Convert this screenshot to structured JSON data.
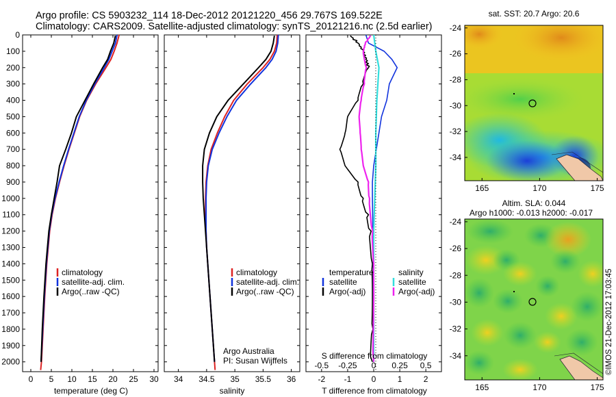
{
  "header": {
    "line1": "Argo profile: CS 5903232_114 18-Dec-2012 20121220_456 29.767S 169.522E",
    "line2": "Climatology: CARS2009. Satellite-adjusted climatology: synTS_20121216.nc (2.5d earlier)"
  },
  "colors": {
    "climatology": "#dd2222",
    "satellite": "#1133dd",
    "argo": "#000000",
    "salinity_satellite": "#33dddd",
    "salinity_argo": "#ee22ee"
  },
  "panels": {
    "temperature": {
      "xlabel": "temperature (deg C)",
      "legend": [
        "climatology",
        "satellite-adj. clim.",
        "Argo(..raw -QC)"
      ]
    },
    "salinity": {
      "xlabel": "salinity",
      "legend": [
        "climatology",
        "satellite-adj. clim.",
        "Argo(..raw -QC)"
      ],
      "note_line1": "Argo Australia",
      "note_line2": "PI: Susan Wijffels"
    },
    "difference": {
      "xlabel_T": "T difference from climatology",
      "xlabel_S": "S difference from climatology",
      "legend_head_T": "temperature",
      "legend_head_S": "salinity",
      "legend_T": [
        "satellite",
        "Argo(-adj)"
      ],
      "legend_S": [
        "satellite",
        "Argo(-adj)"
      ]
    },
    "sst_map": {
      "title": "sat. SST: 20.7  Argo: 20.6"
    },
    "sla_map": {
      "title1": "Altim. SLA: 0.044",
      "title2": "Argo h1000: -0.013  h2000: -0.017"
    },
    "side_label": "©IMOS 21-Dec-2012 17:03:45"
  },
  "chart_data": [
    {
      "type": "line",
      "panel": "temperature",
      "xlabel": "temperature (deg C)",
      "xlim": [
        -2,
        31
      ],
      "ylim": [
        2060,
        0
      ],
      "x_ticks": [
        0,
        5,
        10,
        15,
        20,
        25,
        30
      ],
      "y_ticks": [
        0,
        100,
        200,
        300,
        400,
        500,
        600,
        700,
        800,
        900,
        1000,
        1100,
        1200,
        1300,
        1400,
        1500,
        1600,
        1700,
        1800,
        1900,
        2000
      ],
      "series": [
        {
          "name": "climatology",
          "depth": [
            0,
            50,
            100,
            150,
            200,
            300,
            400,
            500,
            600,
            700,
            800,
            900,
            1000,
            1100,
            1200,
            1400,
            1600,
            1800,
            2000,
            2050
          ],
          "values": [
            21.5,
            21.0,
            20.3,
            19.5,
            18.3,
            15.8,
            13.6,
            11.9,
            10.6,
            9.3,
            8.1,
            7.0,
            6.0,
            5.2,
            4.6,
            3.9,
            3.4,
            3.0,
            2.6,
            2.4
          ]
        },
        {
          "name": "satellite-adj. clim.",
          "depth": [
            0,
            50,
            100,
            150,
            200,
            300,
            400,
            500,
            600,
            700,
            800,
            900,
            1000,
            1100,
            1200,
            1400,
            1600,
            1800,
            2000
          ],
          "values": [
            21.0,
            20.6,
            19.8,
            19.0,
            17.9,
            15.6,
            13.5,
            11.8,
            10.5,
            9.2,
            8.0,
            6.9,
            5.9,
            5.1,
            4.5,
            3.8,
            3.3,
            2.9,
            2.5
          ]
        },
        {
          "name": "Argo(..raw -QC)",
          "depth": [
            5,
            50,
            100,
            150,
            200,
            300,
            400,
            500,
            600,
            700,
            800,
            900,
            1000,
            1100,
            1200,
            1400,
            1600,
            1800,
            2000
          ],
          "values": [
            20.6,
            20.2,
            19.4,
            18.7,
            17.5,
            15.3,
            13.2,
            11.1,
            9.9,
            8.5,
            7.0,
            6.4,
            5.7,
            5.0,
            4.4,
            3.7,
            3.2,
            2.8,
            2.5
          ]
        }
      ]
    },
    {
      "type": "line",
      "panel": "salinity",
      "xlabel": "salinity",
      "xlim": [
        33.75,
        36.15
      ],
      "ylim": [
        2060,
        0
      ],
      "x_ticks": [
        34,
        34.5,
        35,
        35.5,
        36
      ],
      "series": [
        {
          "name": "climatology",
          "depth": [
            0,
            50,
            100,
            150,
            200,
            300,
            400,
            500,
            600,
            700,
            800,
            900,
            1000,
            1100,
            1200,
            1300,
            1400,
            1600,
            1800,
            2000,
            2050
          ],
          "values": [
            35.75,
            35.74,
            35.7,
            35.62,
            35.5,
            35.22,
            34.98,
            34.82,
            34.69,
            34.58,
            34.52,
            34.49,
            34.48,
            34.48,
            34.49,
            34.5,
            34.52,
            34.56,
            34.6,
            34.64,
            34.65
          ]
        },
        {
          "name": "satellite-adj. clim.",
          "depth": [
            0,
            50,
            100,
            150,
            200,
            300,
            400,
            500,
            600,
            700,
            800,
            900,
            1000,
            1100,
            1200,
            1300,
            1400,
            1600,
            1800,
            2000
          ],
          "values": [
            35.77,
            35.76,
            35.73,
            35.66,
            35.55,
            35.28,
            35.03,
            34.86,
            34.72,
            34.6,
            34.53,
            34.5,
            34.49,
            34.49,
            34.49,
            34.5,
            34.52,
            34.56,
            34.6,
            34.64
          ]
        },
        {
          "name": "Argo(..raw -QC)",
          "depth": [
            5,
            50,
            100,
            150,
            200,
            300,
            400,
            500,
            600,
            700,
            800,
            900,
            1000,
            1100,
            1200,
            1300,
            1400,
            1600,
            1800,
            2000
          ],
          "values": [
            35.7,
            35.68,
            35.64,
            35.55,
            35.42,
            35.15,
            34.88,
            34.68,
            34.55,
            34.46,
            34.43,
            34.43,
            34.44,
            34.46,
            34.48,
            34.5,
            34.52,
            34.56,
            34.6,
            34.64
          ]
        }
      ]
    },
    {
      "type": "line",
      "panel": "difference",
      "xlabel": "T difference from climatology",
      "xlim": [
        -2.6,
        2.6
      ],
      "ylim": [
        2060,
        0
      ],
      "x_ticks_T": [
        -2,
        -1,
        0,
        1,
        2
      ],
      "x_ticks_S": [
        -0.5,
        -0.25,
        0,
        0.25,
        0.5
      ],
      "series": [
        {
          "name": "temperature satellite",
          "depth": [
            0,
            50,
            100,
            150,
            200,
            300,
            400,
            500,
            600,
            700,
            800,
            900,
            1000,
            1200,
            1400,
            1600,
            1800,
            2000
          ],
          "values": [
            -0.3,
            -0.2,
            0.4,
            0.7,
            0.9,
            0.6,
            0.5,
            0.3,
            0.2,
            0.1,
            0.0,
            -0.05,
            -0.05,
            -0.03,
            -0.02,
            -0.01,
            0,
            0
          ]
        },
        {
          "name": "temperature Argo(-adj)",
          "depth": [
            5,
            50,
            100,
            150,
            200,
            300,
            400,
            500,
            600,
            700,
            800,
            900,
            1000,
            1100,
            1200,
            1400,
            1600,
            1800,
            2000
          ],
          "values": [
            -0.9,
            -0.6,
            -0.4,
            -0.3,
            -0.2,
            -0.4,
            -0.6,
            -1.0,
            -1.1,
            -1.3,
            -1.1,
            -0.6,
            -0.4,
            -0.2,
            -0.1,
            -0.05,
            -0.05,
            -0.03,
            -0.05
          ]
        },
        {
          "name": "salinity satellite",
          "depth": [
            0,
            100,
            200,
            400,
            600,
            800,
            1000,
            1200,
            1400,
            1600,
            1800,
            2000
          ],
          "values": [
            0.0,
            0.02,
            0.05,
            0.03,
            0.02,
            0.02,
            0.01,
            0.0,
            0.0,
            0.0,
            0.0,
            0.0
          ]
        },
        {
          "name": "salinity Argo(-adj)",
          "depth": [
            5,
            50,
            100,
            200,
            300,
            400,
            500,
            600,
            700,
            800,
            900,
            1000,
            1200,
            1400,
            1600,
            2000
          ],
          "values": [
            -0.03,
            -0.08,
            -0.1,
            -0.07,
            -0.09,
            -0.12,
            -0.14,
            -0.13,
            -0.12,
            -0.1,
            -0.05,
            -0.04,
            -0.01,
            0.0,
            0.0,
            0.0
          ]
        }
      ]
    },
    {
      "type": "heatmap",
      "panel": "sst_map",
      "title": "sat. SST: 20.7  Argo: 20.6",
      "xlim": [
        163.5,
        175.5
      ],
      "ylim": [
        -35.8,
        -23.8
      ],
      "x_ticks": [
        165,
        170,
        175
      ],
      "y_ticks": [
        -24,
        -26,
        -28,
        -30,
        -32,
        -34
      ],
      "argo_position": [
        169.522,
        -29.767
      ]
    },
    {
      "type": "heatmap",
      "panel": "sla_map",
      "title": "Altim. SLA: 0.044",
      "xlim": [
        163.5,
        175.5
      ],
      "ylim": [
        -35.8,
        -23.8
      ],
      "x_ticks": [
        165,
        170,
        175
      ],
      "y_ticks": [
        -24,
        -26,
        -28,
        -30,
        -32,
        -34
      ],
      "argo_position": [
        169.522,
        -29.767
      ]
    }
  ]
}
